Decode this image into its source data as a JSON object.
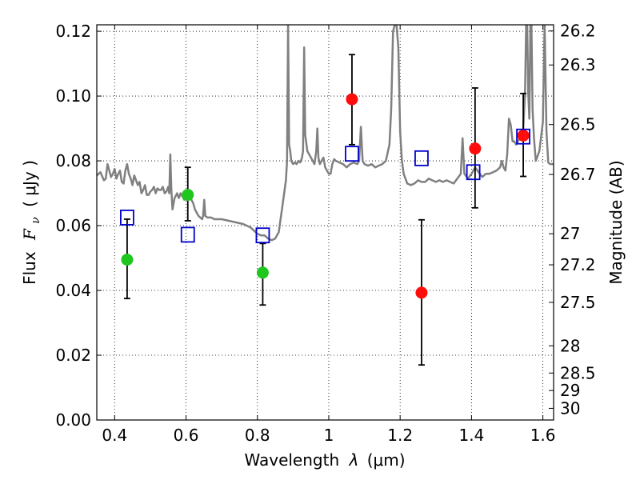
{
  "chart_data": {
    "type": "scatter",
    "xlabel_text": "Wavelength",
    "xlabel_symbol": "λ",
    "xlabel_unit": "(μm)",
    "ylabel_text": "Flux",
    "ylabel_symbol": "F",
    "ylabel_sub": "ν",
    "ylabel_unit": "( μJy )",
    "y2label": "Magnitude (AB)",
    "xlim": [
      0.35,
      1.63
    ],
    "ylim": [
      0.0,
      0.122
    ],
    "grid": true,
    "x_ticks": [
      0.4,
      0.6,
      0.8,
      1.0,
      1.2,
      1.4,
      1.6
    ],
    "x_tick_labels": [
      "0.4",
      "0.6",
      "0.8",
      "1",
      "1.2",
      "1.4",
      "1.6"
    ],
    "y_ticks": [
      0.0,
      0.02,
      0.04,
      0.06,
      0.08,
      0.1,
      0.12
    ],
    "y_tick_labels": [
      "0.00",
      "0.02",
      "0.04",
      "0.06",
      "0.08",
      "0.10",
      "0.12"
    ],
    "mag_ticks": [
      {
        "label": "26.2",
        "flux": 0.1201
      },
      {
        "label": "26.3",
        "flux": 0.1096
      },
      {
        "label": "26.5",
        "flux": 0.0912
      },
      {
        "label": "26.7",
        "flux": 0.0758
      },
      {
        "label": "27",
        "flux": 0.0575
      },
      {
        "label": "27.2",
        "flux": 0.0479
      },
      {
        "label": "27.5",
        "flux": 0.0363
      },
      {
        "label": "28",
        "flux": 0.0229
      },
      {
        "label": "28.5",
        "flux": 0.0145
      },
      {
        "label": "29",
        "flux": 0.0091
      },
      {
        "label": "30",
        "flux": 0.0036
      }
    ],
    "series": [
      {
        "kind": "line",
        "color": "#808080",
        "points": [
          [
            0.35,
            0.0755
          ],
          [
            0.36,
            0.0765
          ],
          [
            0.37,
            0.074
          ],
          [
            0.375,
            0.0745
          ],
          [
            0.38,
            0.079
          ],
          [
            0.385,
            0.077
          ],
          [
            0.39,
            0.075
          ],
          [
            0.395,
            0.076
          ],
          [
            0.4,
            0.0775
          ],
          [
            0.405,
            0.0745
          ],
          [
            0.41,
            0.076
          ],
          [
            0.415,
            0.077
          ],
          [
            0.42,
            0.0735
          ],
          [
            0.425,
            0.073
          ],
          [
            0.43,
            0.077
          ],
          [
            0.435,
            0.079
          ],
          [
            0.44,
            0.076
          ],
          [
            0.445,
            0.0745
          ],
          [
            0.45,
            0.0725
          ],
          [
            0.455,
            0.0755
          ],
          [
            0.46,
            0.074
          ],
          [
            0.465,
            0.0725
          ],
          [
            0.47,
            0.0735
          ],
          [
            0.475,
            0.07
          ],
          [
            0.48,
            0.071
          ],
          [
            0.485,
            0.0725
          ],
          [
            0.49,
            0.0695
          ],
          [
            0.495,
            0.0695
          ],
          [
            0.5,
            0.0705
          ],
          [
            0.505,
            0.071
          ],
          [
            0.51,
            0.072
          ],
          [
            0.515,
            0.07
          ],
          [
            0.52,
            0.0715
          ],
          [
            0.525,
            0.071
          ],
          [
            0.53,
            0.071
          ],
          [
            0.535,
            0.072
          ],
          [
            0.54,
            0.07
          ],
          [
            0.545,
            0.0705
          ],
          [
            0.55,
            0.072
          ],
          [
            0.553,
            0.07
          ],
          [
            0.556,
            0.082
          ],
          [
            0.559,
            0.071
          ],
          [
            0.562,
            0.065
          ],
          [
            0.568,
            0.0685
          ],
          [
            0.575,
            0.07
          ],
          [
            0.58,
            0.0685
          ],
          [
            0.585,
            0.07
          ],
          [
            0.59,
            0.069
          ],
          [
            0.595,
            0.068
          ],
          [
            0.6,
            0.0685
          ],
          [
            0.605,
            0.0695
          ],
          [
            0.61,
            0.069
          ],
          [
            0.615,
            0.068
          ],
          [
            0.62,
            0.067
          ],
          [
            0.625,
            0.065
          ],
          [
            0.63,
            0.064
          ],
          [
            0.635,
            0.063
          ],
          [
            0.64,
            0.0625
          ],
          [
            0.645,
            0.062
          ],
          [
            0.648,
            0.063
          ],
          [
            0.651,
            0.068
          ],
          [
            0.654,
            0.063
          ],
          [
            0.66,
            0.0625
          ],
          [
            0.67,
            0.0625
          ],
          [
            0.68,
            0.062
          ],
          [
            0.7,
            0.062
          ],
          [
            0.72,
            0.0615
          ],
          [
            0.74,
            0.061
          ],
          [
            0.76,
            0.0605
          ],
          [
            0.78,
            0.0595
          ],
          [
            0.79,
            0.0585
          ],
          [
            0.8,
            0.0575
          ],
          [
            0.81,
            0.057
          ],
          [
            0.82,
            0.057
          ],
          [
            0.83,
            0.056
          ],
          [
            0.84,
            0.0555
          ],
          [
            0.85,
            0.056
          ],
          [
            0.86,
            0.058
          ],
          [
            0.865,
            0.062
          ],
          [
            0.87,
            0.066
          ],
          [
            0.875,
            0.07
          ],
          [
            0.88,
            0.074
          ],
          [
            0.883,
            0.08
          ],
          [
            0.886,
            0.122
          ],
          [
            0.889,
            0.085
          ],
          [
            0.892,
            0.083
          ],
          [
            0.895,
            0.08
          ],
          [
            0.9,
            0.079
          ],
          [
            0.905,
            0.0795
          ],
          [
            0.91,
            0.079
          ],
          [
            0.915,
            0.08
          ],
          [
            0.92,
            0.0795
          ],
          [
            0.925,
            0.081
          ],
          [
            0.928,
            0.083
          ],
          [
            0.931,
            0.115
          ],
          [
            0.934,
            0.088
          ],
          [
            0.94,
            0.083
          ],
          [
            0.95,
            0.081
          ],
          [
            0.96,
            0.079
          ],
          [
            0.965,
            0.083
          ],
          [
            0.968,
            0.09
          ],
          [
            0.971,
            0.081
          ],
          [
            0.975,
            0.079
          ],
          [
            0.98,
            0.08
          ],
          [
            0.985,
            0.081
          ],
          [
            0.99,
            0.078
          ],
          [
            0.995,
            0.077
          ],
          [
            1.0,
            0.076
          ],
          [
            1.005,
            0.076
          ],
          [
            1.01,
            0.079
          ],
          [
            1.015,
            0.0805
          ],
          [
            1.02,
            0.08
          ],
          [
            1.03,
            0.0795
          ],
          [
            1.04,
            0.079
          ],
          [
            1.05,
            0.078
          ],
          [
            1.06,
            0.079
          ],
          [
            1.07,
            0.0795
          ],
          [
            1.08,
            0.079
          ],
          [
            1.085,
            0.08
          ],
          [
            1.09,
            0.0905
          ],
          [
            1.095,
            0.08
          ],
          [
            1.1,
            0.079
          ],
          [
            1.11,
            0.0785
          ],
          [
            1.12,
            0.079
          ],
          [
            1.13,
            0.078
          ],
          [
            1.14,
            0.0785
          ],
          [
            1.15,
            0.079
          ],
          [
            1.16,
            0.08
          ],
          [
            1.17,
            0.085
          ],
          [
            1.175,
            0.096
          ],
          [
            1.18,
            0.12
          ],
          [
            1.185,
            0.122
          ],
          [
            1.19,
            0.122
          ],
          [
            1.195,
            0.115
          ],
          [
            1.2,
            0.089
          ],
          [
            1.205,
            0.08
          ],
          [
            1.21,
            0.076
          ],
          [
            1.22,
            0.073
          ],
          [
            1.23,
            0.0725
          ],
          [
            1.24,
            0.073
          ],
          [
            1.25,
            0.074
          ],
          [
            1.26,
            0.0735
          ],
          [
            1.27,
            0.0735
          ],
          [
            1.28,
            0.0745
          ],
          [
            1.29,
            0.074
          ],
          [
            1.3,
            0.0735
          ],
          [
            1.31,
            0.074
          ],
          [
            1.32,
            0.0735
          ],
          [
            1.33,
            0.074
          ],
          [
            1.34,
            0.0735
          ],
          [
            1.35,
            0.073
          ],
          [
            1.36,
            0.0745
          ],
          [
            1.37,
            0.076
          ],
          [
            1.375,
            0.087
          ],
          [
            1.38,
            0.076
          ],
          [
            1.39,
            0.0745
          ],
          [
            1.4,
            0.076
          ],
          [
            1.41,
            0.078
          ],
          [
            1.42,
            0.0765
          ],
          [
            1.43,
            0.075
          ],
          [
            1.44,
            0.076
          ],
          [
            1.45,
            0.076
          ],
          [
            1.46,
            0.0765
          ],
          [
            1.47,
            0.077
          ],
          [
            1.48,
            0.078
          ],
          [
            1.485,
            0.08
          ],
          [
            1.49,
            0.078
          ],
          [
            1.495,
            0.077
          ],
          [
            1.5,
            0.082
          ],
          [
            1.505,
            0.093
          ],
          [
            1.51,
            0.091
          ],
          [
            1.515,
            0.086
          ],
          [
            1.52,
            0.086
          ],
          [
            1.525,
            0.085
          ],
          [
            1.53,
            0.086
          ],
          [
            1.535,
            0.087
          ],
          [
            1.54,
            0.088
          ],
          [
            1.545,
            0.09
          ],
          [
            1.55,
            0.101
          ],
          [
            1.553,
            0.122
          ],
          [
            1.556,
            0.122
          ],
          [
            1.559,
            0.101
          ],
          [
            1.562,
            0.093
          ],
          [
            1.565,
            0.122
          ],
          [
            1.568,
            0.122
          ],
          [
            1.571,
            0.096
          ],
          [
            1.575,
            0.087
          ],
          [
            1.58,
            0.08
          ],
          [
            1.59,
            0.083
          ],
          [
            1.6,
            0.092
          ],
          [
            1.605,
            0.122
          ],
          [
            1.61,
            0.089
          ],
          [
            1.615,
            0.0795
          ],
          [
            1.62,
            0.079
          ],
          [
            1.63,
            0.079
          ]
        ]
      },
      {
        "kind": "points",
        "marker": "circle",
        "color": "#1ec61e",
        "x": [
          0.435,
          0.605,
          0.815
        ],
        "y": [
          0.0495,
          0.0695,
          0.0455
        ],
        "yerr_low": [
          0.0375,
          0.0615,
          0.0355
        ],
        "yerr_high": [
          0.062,
          0.078,
          0.0545
        ]
      },
      {
        "kind": "points",
        "marker": "circle",
        "color": "#ff0d0d",
        "x": [
          1.065,
          1.26,
          1.41,
          1.545
        ],
        "y": [
          0.099,
          0.0393,
          0.0838,
          0.0878
        ],
        "yerr_low": [
          0.085,
          0.017,
          0.0655,
          0.0752
        ],
        "yerr_high": [
          0.1128,
          0.0618,
          0.1025,
          0.1008
        ]
      },
      {
        "kind": "points",
        "marker": "square-open",
        "color": "#0000cc",
        "x": [
          0.435,
          0.605,
          0.815,
          1.065,
          1.26,
          1.405,
          1.545
        ],
        "y": [
          0.0625,
          0.0572,
          0.057,
          0.0822,
          0.0808,
          0.0765,
          0.0875
        ]
      }
    ]
  }
}
